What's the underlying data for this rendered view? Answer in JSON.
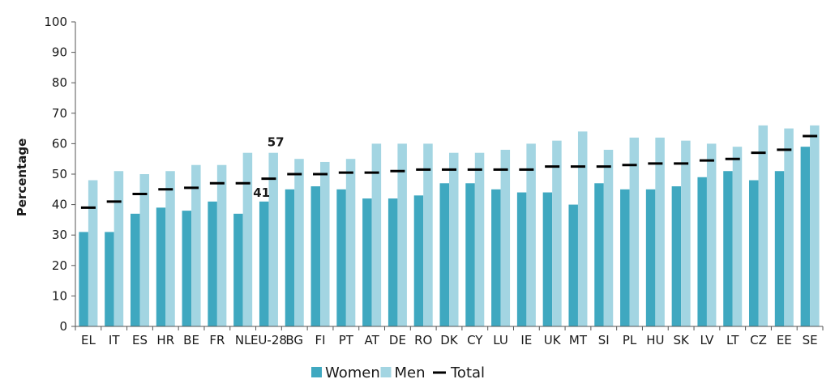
{
  "chart_data": {
    "type": "bar",
    "ylabel": "Percentage",
    "ylim": [
      0,
      100
    ],
    "yticks": [
      0,
      10,
      20,
      30,
      40,
      50,
      60,
      70,
      80,
      90,
      100
    ],
    "categories": [
      "EL",
      "IT",
      "ES",
      "HR",
      "BE",
      "FR",
      "NL",
      "EU-28",
      "BG",
      "FI",
      "PT",
      "AT",
      "DE",
      "RO",
      "DK",
      "CY",
      "LU",
      "IE",
      "UK",
      "MT",
      "SI",
      "PL",
      "HU",
      "SK",
      "LV",
      "LT",
      "CZ",
      "EE",
      "SE"
    ],
    "series": [
      {
        "name": "Women",
        "kind": "bar",
        "color": "#3fa8c0",
        "values": [
          31,
          31,
          37,
          39,
          38,
          41,
          37,
          41,
          45,
          46,
          45,
          42,
          42,
          43,
          47,
          47,
          45,
          44,
          44,
          40,
          47,
          45,
          45,
          46,
          49,
          51,
          48,
          51,
          59
        ]
      },
      {
        "name": "Men",
        "kind": "bar",
        "color": "#a3d5e2",
        "values": [
          48,
          51,
          50,
          51,
          53,
          53,
          57,
          57,
          55,
          54,
          55,
          60,
          60,
          60,
          57,
          57,
          58,
          60,
          61,
          64,
          58,
          62,
          62,
          61,
          60,
          59,
          66,
          65,
          66
        ]
      },
      {
        "name": "Total",
        "kind": "marker",
        "color": "#000000",
        "values": [
          39,
          41,
          43.5,
          45,
          45.5,
          47,
          47,
          48.5,
          50,
          50,
          50.5,
          50.5,
          51,
          51.5,
          51.5,
          51.5,
          51.5,
          51.5,
          52.5,
          52.5,
          52.5,
          53,
          53.5,
          53.5,
          54.5,
          55,
          57,
          58,
          62.5
        ]
      }
    ],
    "annotations": [
      {
        "category": "EU-28",
        "series": "Men",
        "text": "57"
      },
      {
        "category": "EU-28",
        "series": "Women",
        "text": "41"
      }
    ],
    "legend": {
      "position": "bottom",
      "entries": [
        "Women",
        "Men",
        "Total"
      ]
    },
    "grid": false
  }
}
